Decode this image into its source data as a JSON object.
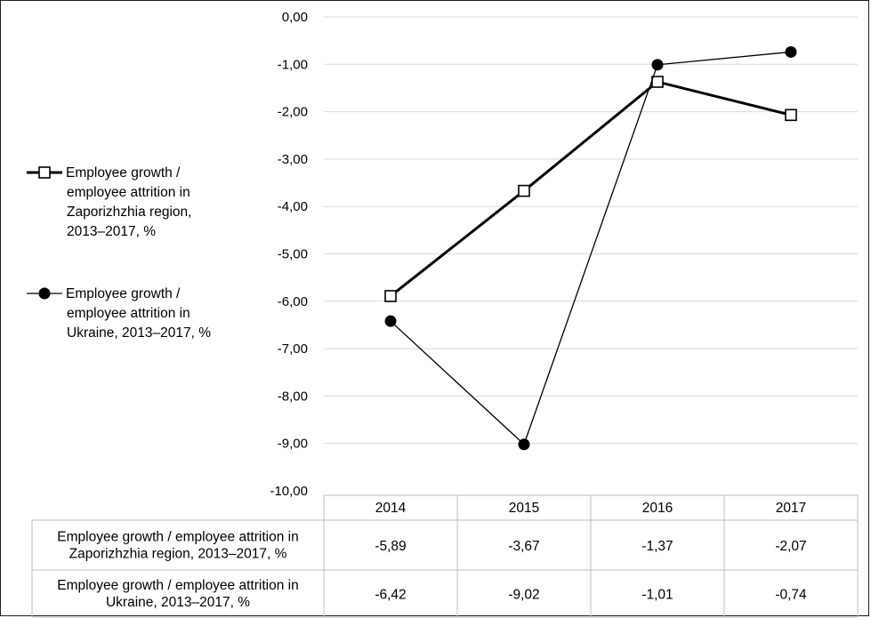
{
  "chart_data": {
    "type": "line",
    "categories": [
      "2014",
      "2015",
      "2016",
      "2017"
    ],
    "ylim": [
      -10,
      0
    ],
    "yticks": [
      "0,00",
      "-1,00",
      "-2,00",
      "-3,00",
      "-4,00",
      "-5,00",
      "-6,00",
      "-7,00",
      "-8,00",
      "-9,00",
      "-10,00"
    ],
    "grid": true,
    "legend_position": "left",
    "data_table": true,
    "series": [
      {
        "name": "Employee growth / employee attrition in Zaporizhzhia region, 2013–2017, %",
        "legend_lines": [
          "Employee growth /",
          "employee attrition in",
          "Zaporizhzhia region,",
          "2013–2017,  %"
        ],
        "table_lines": [
          "Employee growth / employee attrition in",
          "Zaporizhzhia region, 2013–2017,  %"
        ],
        "values": [
          -5.89,
          -3.67,
          -1.37,
          -2.07
        ],
        "value_labels": [
          "-5,89",
          "-3,67",
          "-1,37",
          "-2,07"
        ],
        "marker": "open-square",
        "line_width": "thick",
        "color": "#000000"
      },
      {
        "name": "Employee growth / employee attrition in Ukraine, 2013–2017, %",
        "legend_lines": [
          "Employee growth /",
          "employee attrition in",
          "Ukraine, 2013–2017,  %"
        ],
        "table_lines": [
          "Employee growth / employee attrition in",
          "Ukraine, 2013–2017,  %"
        ],
        "values": [
          -6.42,
          -9.02,
          -1.01,
          -0.74
        ],
        "value_labels": [
          "-6,42",
          "-9,02",
          "-1,01",
          "-0,74"
        ],
        "marker": "filled-circle",
        "line_width": "thin",
        "color": "#000000"
      }
    ]
  }
}
